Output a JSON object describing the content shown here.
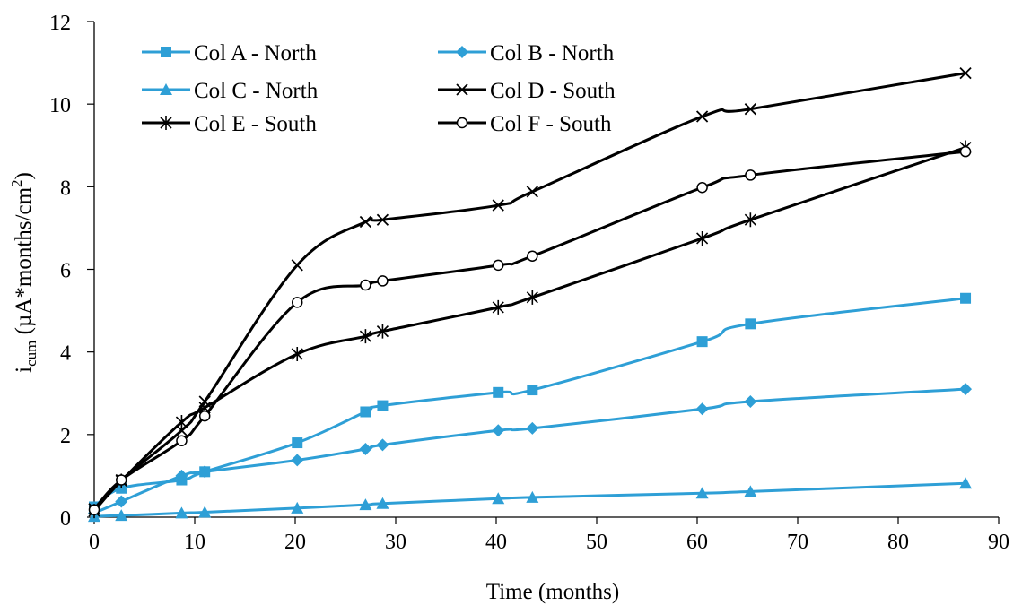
{
  "chart_data": {
    "type": "line",
    "title": "",
    "xlabel": "Time (months)",
    "ylabel_main": "i",
    "ylabel_sub": "cum",
    "ylabel_rest": " (µA*months/cm",
    "ylabel_sup": "2",
    "ylabel_close": ")",
    "xlim": [
      0,
      90
    ],
    "ylim": [
      0,
      12
    ],
    "xticks": [
      0,
      10,
      20,
      30,
      40,
      50,
      60,
      70,
      80,
      90
    ],
    "yticks": [
      0,
      2,
      4,
      6,
      8,
      10,
      12
    ],
    "grid": false,
    "legend_position": "top-left",
    "series": [
      {
        "name": "Col A - North",
        "color": "#2E9FD6",
        "marker": "square",
        "x": [
          0,
          2.7,
          8.7,
          11,
          20.2,
          27,
          28.7,
          40.2,
          43.6,
          60.5,
          65.3,
          86.7
        ],
        "y": [
          0.25,
          0.7,
          0.9,
          1.1,
          1.8,
          2.55,
          2.7,
          3.02,
          3.08,
          4.25,
          4.68,
          5.3
        ]
      },
      {
        "name": "Col B - North",
        "color": "#2E9FD6",
        "marker": "diamond",
        "x": [
          0,
          2.7,
          8.7,
          11,
          20.2,
          27,
          28.7,
          40.2,
          43.6,
          60.5,
          65.3,
          86.7
        ],
        "y": [
          0.1,
          0.38,
          1.0,
          1.1,
          1.38,
          1.65,
          1.75,
          2.1,
          2.15,
          2.62,
          2.8,
          3.1
        ]
      },
      {
        "name": "Col C - North",
        "color": "#2E9FD6",
        "marker": "triangle",
        "x": [
          0,
          2.7,
          8.7,
          11,
          20.2,
          27,
          28.7,
          40.2,
          43.6,
          60.5,
          65.3,
          86.7
        ],
        "y": [
          0.02,
          0.04,
          0.1,
          0.12,
          0.22,
          0.3,
          0.33,
          0.45,
          0.48,
          0.58,
          0.62,
          0.82
        ]
      },
      {
        "name": "Col D - South",
        "color": "#000000",
        "marker": "x",
        "x": [
          0,
          2.7,
          8.7,
          11,
          20.2,
          27,
          28.7,
          40.2,
          43.6,
          60.5,
          65.3,
          86.7
        ],
        "y": [
          0.2,
          0.9,
          2.1,
          2.8,
          6.1,
          7.15,
          7.2,
          7.55,
          7.88,
          9.7,
          9.88,
          10.75
        ]
      },
      {
        "name": "Col E - South",
        "color": "#000000",
        "marker": "asterisk",
        "x": [
          0,
          2.7,
          8.7,
          11,
          20.2,
          27,
          28.7,
          40.2,
          43.6,
          60.5,
          65.3,
          86.7
        ],
        "y": [
          0.15,
          0.88,
          2.3,
          2.65,
          3.95,
          4.38,
          4.5,
          5.08,
          5.32,
          6.75,
          7.2,
          8.95
        ]
      },
      {
        "name": "Col F - South",
        "color": "#000000",
        "marker": "circle",
        "x": [
          0,
          2.7,
          8.7,
          11,
          20.2,
          27,
          28.7,
          40.2,
          43.6,
          60.5,
          65.3,
          86.7
        ],
        "y": [
          0.18,
          0.9,
          1.85,
          2.45,
          5.2,
          5.62,
          5.72,
          6.1,
          6.32,
          7.98,
          8.28,
          8.85
        ]
      }
    ]
  }
}
